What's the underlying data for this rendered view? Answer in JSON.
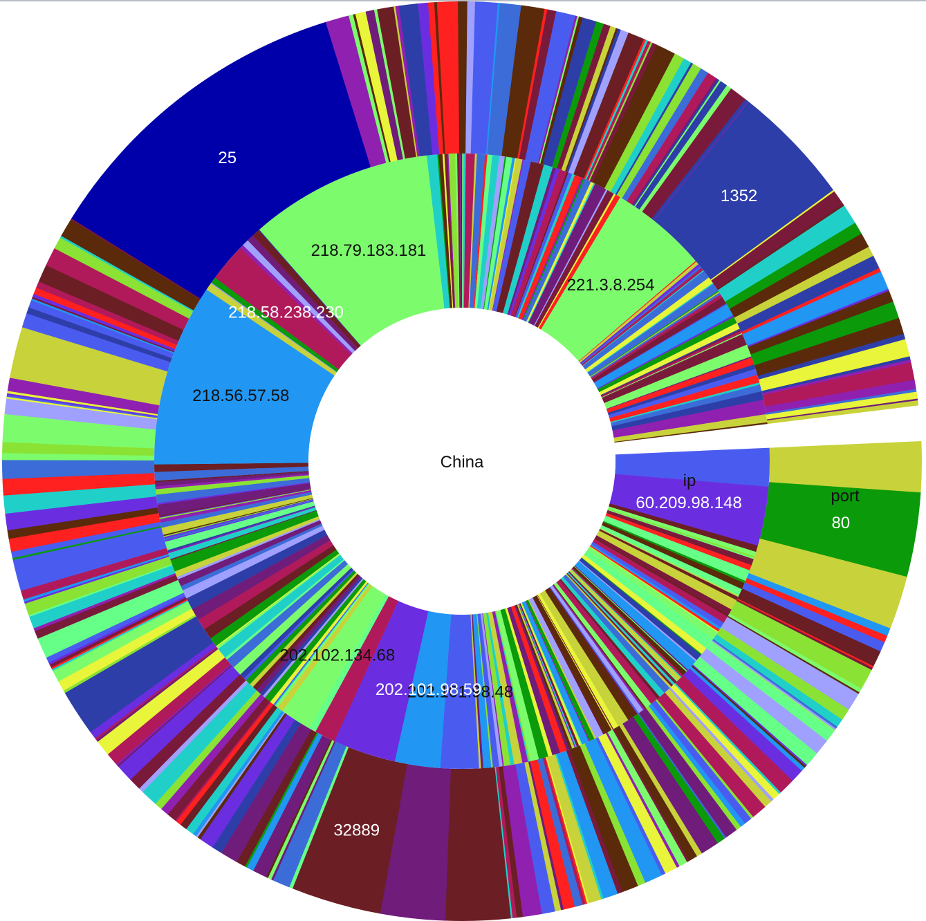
{
  "chart_data": {
    "type": "sunburst",
    "center_label": "China",
    "ring_labels": [
      "ip",
      "port"
    ],
    "seed": 7,
    "palette": [
      "#7cfc6c",
      "#8ae234",
      "#2e3ea8",
      "#7a1a3a",
      "#701c7a",
      "#2196f3",
      "#6a2ee0",
      "#c8d23a",
      "#e8f53a",
      "#20d0c8",
      "#4a5cf0",
      "#b01a5a",
      "#0a9a0a",
      "#5a2a0a",
      "#66ff88",
      "#9020b0",
      "#a0a0ff",
      "#3c6cd8",
      "#6b1e24",
      "#ff2020"
    ],
    "label_visibility_threshold_pct": 1.3,
    "ip_segments": [
      {
        "label": "",
        "value": 2.2,
        "color": "#4a5cf0"
      },
      {
        "label": "60.209.98.148",
        "value": 3.4,
        "color": "#6a2ee0",
        "label_color": "light"
      },
      {
        "filler": 21.5
      },
      {
        "label": "202.101.98.48",
        "value": 2.2,
        "color": "#4a5cf0",
        "label_color": "dark"
      },
      {
        "label": "202.101.98.59",
        "value": 2.6,
        "color": "#2196f3",
        "label_color": "light"
      },
      {
        "label": "",
        "value": 3.6,
        "color": "#6a2ee0"
      },
      {
        "label": "",
        "value": 1.2,
        "color": "#b01a5a"
      },
      {
        "label": "",
        "value": 0.4,
        "color": "#66ff88"
      },
      {
        "label": "202.102.134.68",
        "value": 1.8,
        "color": "#7cfc6c",
        "label_color": "dark"
      },
      {
        "filler": 16.3
      },
      {
        "label": "218.56.57.58",
        "value": 10.4,
        "color": "#2196f3",
        "label_color": "dark"
      },
      {
        "filler": 0.9
      },
      {
        "label": "218.58.238.230",
        "value": 2.2,
        "color": "#b01a5a",
        "label_color": "light"
      },
      {
        "filler": 1.5
      },
      {
        "label": "218.79.183.181",
        "value": 10.5,
        "color": "#7cfc6c",
        "label_color": "dark"
      },
      {
        "filler": 11.4
      },
      {
        "label": "221.3.8.254",
        "value": 5.6,
        "color": "#7cfc6c",
        "label_color": "dark"
      },
      {
        "filler": 10.2
      }
    ],
    "port_segments": [
      {
        "label": "",
        "value": 1.8,
        "color": "#c8d23a"
      },
      {
        "label": "80",
        "value": 3.0,
        "color": "#0a9a0a",
        "label_color": "light"
      },
      {
        "label": "",
        "value": 1.9,
        "color": "#c8d23a"
      },
      {
        "filler": 17.6
      },
      {
        "label": "",
        "value": 2.3,
        "color": "#6b1e24"
      },
      {
        "label": "",
        "value": 2.3,
        "color": "#701c7a"
      },
      {
        "label": "32889",
        "value": 3.2,
        "color": "#6b1e24",
        "label_color": "light"
      },
      {
        "filler": 22.4
      },
      {
        "label": "",
        "value": 1.6,
        "color": "#c8d23a"
      },
      {
        "filler": 4.2
      },
      {
        "label": "25",
        "value": 11.5,
        "color": "#0000aa",
        "label_color": "light"
      },
      {
        "filler": 15.7
      },
      {
        "label": "1352",
        "value": 4.3,
        "color": "#2e3ea8",
        "label_color": "light"
      },
      {
        "filler": 8.2
      }
    ]
  }
}
